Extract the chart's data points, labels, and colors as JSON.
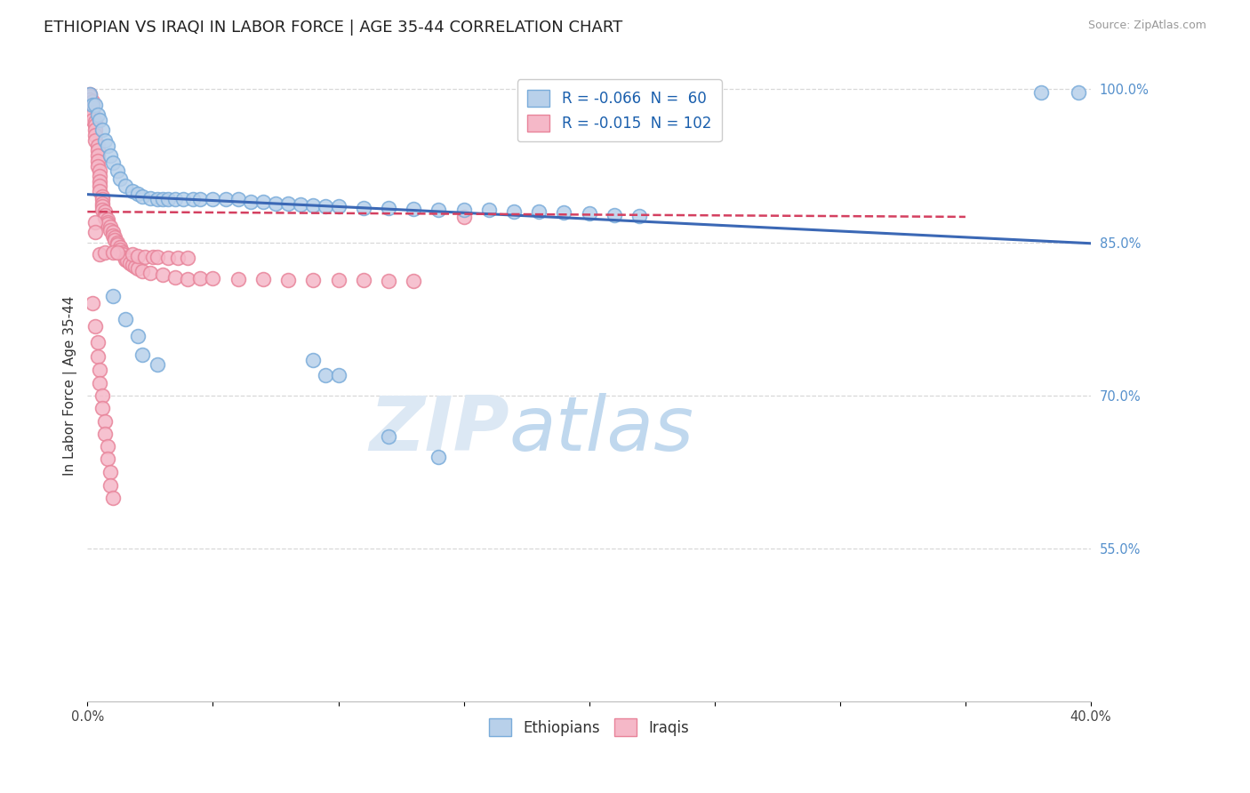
{
  "title": "ETHIOPIAN VS IRAQI IN LABOR FORCE | AGE 35-44 CORRELATION CHART",
  "source_text": "Source: ZipAtlas.com",
  "ylabel": "In Labor Force | Age 35-44",
  "xlim": [
    0.0,
    0.4
  ],
  "ylim": [
    0.4,
    1.02
  ],
  "xtick_vals": [
    0.0,
    0.05,
    0.1,
    0.15,
    0.2,
    0.25,
    0.3,
    0.35,
    0.4
  ],
  "xtick_labels": [
    "0.0%",
    "",
    "",
    "",
    "",
    "",
    "",
    "",
    "40.0%"
  ],
  "ytick_vals": [
    0.55,
    0.7,
    0.85,
    1.0
  ],
  "ytick_labels": [
    "55.0%",
    "70.0%",
    "85.0%",
    "100.0%"
  ],
  "legend_entries": [
    {
      "label_r": "R = ",
      "label_r_val": "-0.066",
      "label_n": "  N = ",
      "label_n_val": " 60",
      "color": "#aec6e8"
    },
    {
      "label_r": "R = ",
      "label_r_val": "-0.015",
      "label_n": "  N = ",
      "label_n_val": "102",
      "color": "#f4a0b0"
    }
  ],
  "legend_labels_bottom": [
    "Ethiopians",
    "Iraqis"
  ],
  "legend_colors_bottom": [
    "#aec6e8",
    "#f4a0b0"
  ],
  "blue_trend_x": [
    0.0,
    0.4
  ],
  "blue_trend_y": [
    0.897,
    0.849
  ],
  "pink_trend_x": [
    0.0,
    0.35
  ],
  "pink_trend_y": [
    0.88,
    0.875
  ],
  "scatter_blue": [
    [
      0.001,
      0.995
    ],
    [
      0.002,
      0.985
    ],
    [
      0.003,
      0.985
    ],
    [
      0.004,
      0.975
    ],
    [
      0.005,
      0.97
    ],
    [
      0.006,
      0.96
    ],
    [
      0.007,
      0.95
    ],
    [
      0.008,
      0.945
    ],
    [
      0.009,
      0.935
    ],
    [
      0.01,
      0.928
    ],
    [
      0.012,
      0.92
    ],
    [
      0.013,
      0.912
    ],
    [
      0.015,
      0.905
    ],
    [
      0.018,
      0.9
    ],
    [
      0.02,
      0.898
    ],
    [
      0.022,
      0.895
    ],
    [
      0.025,
      0.893
    ],
    [
      0.028,
      0.892
    ],
    [
      0.03,
      0.892
    ],
    [
      0.032,
      0.892
    ],
    [
      0.035,
      0.892
    ],
    [
      0.038,
      0.892
    ],
    [
      0.042,
      0.892
    ],
    [
      0.045,
      0.892
    ],
    [
      0.05,
      0.892
    ],
    [
      0.055,
      0.892
    ],
    [
      0.06,
      0.892
    ],
    [
      0.065,
      0.89
    ],
    [
      0.07,
      0.89
    ],
    [
      0.075,
      0.888
    ],
    [
      0.08,
      0.888
    ],
    [
      0.085,
      0.887
    ],
    [
      0.09,
      0.886
    ],
    [
      0.095,
      0.885
    ],
    [
      0.1,
      0.885
    ],
    [
      0.11,
      0.884
    ],
    [
      0.12,
      0.884
    ],
    [
      0.13,
      0.883
    ],
    [
      0.14,
      0.882
    ],
    [
      0.15,
      0.882
    ],
    [
      0.16,
      0.882
    ],
    [
      0.17,
      0.88
    ],
    [
      0.18,
      0.88
    ],
    [
      0.19,
      0.879
    ],
    [
      0.2,
      0.878
    ],
    [
      0.21,
      0.877
    ],
    [
      0.22,
      0.876
    ],
    [
      0.01,
      0.797
    ],
    [
      0.015,
      0.775
    ],
    [
      0.02,
      0.758
    ],
    [
      0.022,
      0.74
    ],
    [
      0.028,
      0.73
    ],
    [
      0.09,
      0.735
    ],
    [
      0.095,
      0.72
    ],
    [
      0.1,
      0.72
    ],
    [
      0.12,
      0.66
    ],
    [
      0.14,
      0.64
    ],
    [
      0.38,
      0.997
    ],
    [
      0.395,
      0.997
    ]
  ],
  "scatter_pink": [
    [
      0.001,
      0.995
    ],
    [
      0.001,
      0.993
    ],
    [
      0.001,
      0.99
    ],
    [
      0.002,
      0.988
    ],
    [
      0.002,
      0.985
    ],
    [
      0.002,
      0.982
    ],
    [
      0.002,
      0.978
    ],
    [
      0.002,
      0.975
    ],
    [
      0.002,
      0.97
    ],
    [
      0.003,
      0.968
    ],
    [
      0.003,
      0.965
    ],
    [
      0.003,
      0.96
    ],
    [
      0.003,
      0.955
    ],
    [
      0.003,
      0.95
    ],
    [
      0.004,
      0.945
    ],
    [
      0.004,
      0.94
    ],
    [
      0.004,
      0.935
    ],
    [
      0.004,
      0.93
    ],
    [
      0.004,
      0.925
    ],
    [
      0.005,
      0.92
    ],
    [
      0.005,
      0.915
    ],
    [
      0.005,
      0.91
    ],
    [
      0.005,
      0.905
    ],
    [
      0.005,
      0.9
    ],
    [
      0.006,
      0.895
    ],
    [
      0.006,
      0.892
    ],
    [
      0.006,
      0.888
    ],
    [
      0.006,
      0.885
    ],
    [
      0.006,
      0.882
    ],
    [
      0.007,
      0.88
    ],
    [
      0.007,
      0.877
    ],
    [
      0.007,
      0.874
    ],
    [
      0.008,
      0.872
    ],
    [
      0.008,
      0.87
    ],
    [
      0.008,
      0.868
    ],
    [
      0.009,
      0.865
    ],
    [
      0.009,
      0.862
    ],
    [
      0.01,
      0.86
    ],
    [
      0.01,
      0.857
    ],
    [
      0.011,
      0.855
    ],
    [
      0.011,
      0.852
    ],
    [
      0.012,
      0.85
    ],
    [
      0.012,
      0.848
    ],
    [
      0.013,
      0.845
    ],
    [
      0.013,
      0.843
    ],
    [
      0.014,
      0.84
    ],
    [
      0.014,
      0.838
    ],
    [
      0.015,
      0.835
    ],
    [
      0.015,
      0.833
    ],
    [
      0.016,
      0.832
    ],
    [
      0.017,
      0.83
    ],
    [
      0.018,
      0.828
    ],
    [
      0.019,
      0.826
    ],
    [
      0.02,
      0.824
    ],
    [
      0.022,
      0.822
    ],
    [
      0.002,
      0.79
    ],
    [
      0.003,
      0.768
    ],
    [
      0.004,
      0.752
    ],
    [
      0.004,
      0.738
    ],
    [
      0.005,
      0.725
    ],
    [
      0.005,
      0.712
    ],
    [
      0.006,
      0.7
    ],
    [
      0.006,
      0.688
    ],
    [
      0.007,
      0.675
    ],
    [
      0.007,
      0.662
    ],
    [
      0.008,
      0.65
    ],
    [
      0.008,
      0.638
    ],
    [
      0.009,
      0.625
    ],
    [
      0.009,
      0.612
    ],
    [
      0.01,
      0.6
    ],
    [
      0.003,
      0.87
    ],
    [
      0.003,
      0.86
    ],
    [
      0.025,
      0.82
    ],
    [
      0.03,
      0.818
    ],
    [
      0.035,
      0.816
    ],
    [
      0.04,
      0.814
    ],
    [
      0.045,
      0.815
    ],
    [
      0.05,
      0.815
    ],
    [
      0.06,
      0.814
    ],
    [
      0.07,
      0.814
    ],
    [
      0.08,
      0.813
    ],
    [
      0.09,
      0.813
    ],
    [
      0.1,
      0.813
    ],
    [
      0.11,
      0.813
    ],
    [
      0.12,
      0.812
    ],
    [
      0.13,
      0.812
    ],
    [
      0.005,
      0.838
    ],
    [
      0.007,
      0.84
    ],
    [
      0.01,
      0.84
    ],
    [
      0.012,
      0.84
    ],
    [
      0.018,
      0.838
    ],
    [
      0.02,
      0.837
    ],
    [
      0.023,
      0.836
    ],
    [
      0.026,
      0.836
    ],
    [
      0.028,
      0.836
    ],
    [
      0.032,
      0.835
    ],
    [
      0.036,
      0.835
    ],
    [
      0.04,
      0.835
    ],
    [
      0.15,
      0.875
    ]
  ],
  "blue_color": "#b8d0ea",
  "pink_color": "#f5b8c8",
  "blue_edge": "#7aacda",
  "pink_edge": "#e8849a",
  "blue_line_color": "#3b68b5",
  "pink_line_color": "#d44060",
  "watermark_zip": "ZIP",
  "watermark_atlas": "atlas",
  "watermark_color": "#dce8f4",
  "watermark_atlas_color": "#c0d8ee",
  "background_color": "#ffffff",
  "grid_color": "#d8d8d8",
  "title_fontsize": 13,
  "axis_label_fontsize": 11,
  "tick_fontsize": 10.5,
  "legend_fontsize": 12
}
